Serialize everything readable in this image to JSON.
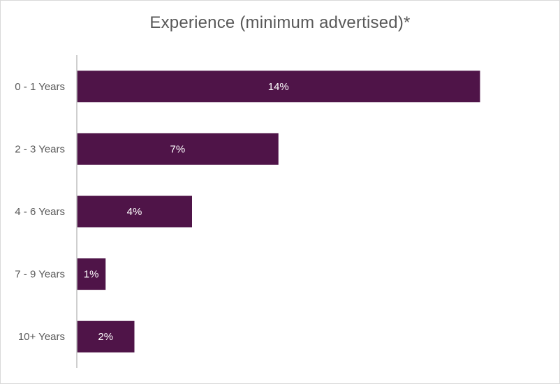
{
  "chart_data": {
    "type": "bar",
    "orientation": "horizontal",
    "title": "Experience (minimum advertised)*",
    "categories": [
      "0 - 1 Years",
      "2 - 3 Years",
      "4 - 6 Years",
      "7 - 9 Years",
      "10+ Years"
    ],
    "values": [
      14,
      7,
      4,
      1,
      2
    ],
    "value_labels": [
      "14%",
      "7%",
      "4%",
      "1%",
      "2%"
    ],
    "unit": "%",
    "xlabel": "",
    "ylabel": "",
    "xlim": [
      0,
      16
    ],
    "grid": false,
    "legend": "none",
    "bar_color": "#4F1448",
    "axis_color": "#BFBFBF"
  }
}
